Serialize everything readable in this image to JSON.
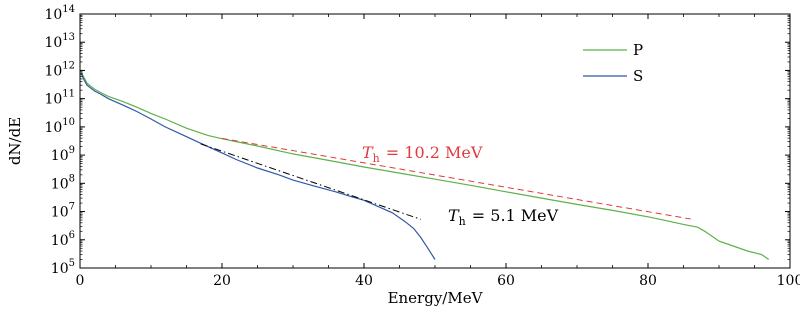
{
  "chart_data": {
    "type": "line",
    "title": "",
    "xlabel": "Energy/MeV",
    "ylabel": "dN/dE",
    "xlim": [
      0,
      100
    ],
    "ylim": [
      100000,
      100000000000000
    ],
    "y_scale": "log",
    "grid": false,
    "legend_position": "top-right",
    "x_ticks": [
      0,
      20,
      40,
      60,
      80,
      100
    ],
    "x_tick_labels": [
      "0",
      "20",
      "40",
      "60",
      "80",
      "100"
    ],
    "y_ticks": [
      100000,
      1000000,
      10000000,
      100000000,
      1000000000,
      10000000000,
      100000000000,
      1000000000000,
      10000000000000,
      100000000000000
    ],
    "y_tick_labels": [
      {
        "base": "10",
        "exp": "5"
      },
      {
        "base": "10",
        "exp": "6"
      },
      {
        "base": "10",
        "exp": "7"
      },
      {
        "base": "10",
        "exp": "8"
      },
      {
        "base": "10",
        "exp": "9"
      },
      {
        "base": "10",
        "exp": "10"
      },
      {
        "base": "10",
        "exp": "11"
      },
      {
        "base": "10",
        "exp": "12"
      },
      {
        "base": "10",
        "exp": "13"
      },
      {
        "base": "10",
        "exp": "14"
      }
    ],
    "series": [
      {
        "name": "P",
        "color": "#5fb14a",
        "x": [
          0.2,
          0.5,
          1,
          2,
          3,
          4,
          6,
          8,
          10,
          12,
          15,
          18,
          20,
          22,
          25,
          30,
          35,
          40,
          45,
          50,
          55,
          60,
          65,
          70,
          75,
          80,
          83,
          85,
          87,
          88,
          90,
          92,
          94,
          96,
          97
        ],
        "y": [
          900000000000,
          600000000000,
          350000000000,
          220000000000,
          160000000000,
          120000000000,
          80000000000,
          50000000000,
          30000000000,
          19000000000,
          9000000000,
          5000000000,
          3800000000,
          3000000000,
          2100000000,
          1100000000,
          650000000,
          380000000,
          230000000,
          140000000,
          85000000,
          50000000,
          30000000,
          18000000,
          11000000,
          6500000,
          4500000,
          3500000,
          2800000,
          2000000,
          900000,
          600000,
          400000,
          300000,
          200000
        ]
      },
      {
        "name": "S",
        "color": "#2f5aa8",
        "x": [
          0.2,
          0.5,
          1,
          2,
          3,
          4,
          6,
          8,
          10,
          12,
          15,
          18,
          20,
          22,
          25,
          28,
          30,
          33,
          36,
          38,
          40,
          42,
          44,
          45,
          46,
          47,
          48,
          49,
          50
        ],
        "y": [
          800000000000,
          500000000000,
          300000000000,
          190000000000,
          140000000000,
          100000000000,
          60000000000,
          35000000000,
          19000000000,
          10000000000,
          4500000000,
          2000000000,
          1200000000,
          700000000,
          350000000,
          200000000,
          130000000,
          80000000,
          50000000,
          35000000,
          25000000,
          15000000,
          9000000,
          6000000,
          4000000,
          2500000,
          1200000,
          500000,
          200000
        ]
      }
    ],
    "fits": [
      {
        "label_var": "T",
        "label_sub": "h",
        "label_value": "= 10.2 MeV",
        "color": "#e0393e",
        "style": "dashed",
        "x": [
          20,
          86
        ],
        "y": [
          3900000000,
          5450000
        ]
      },
      {
        "label_var": "T",
        "label_sub": "h",
        "label_value": "= 5.1 MeV",
        "color": "#000000",
        "style": "dashdot",
        "x": [
          17,
          48
        ],
        "y": [
          2500000000,
          5300000
        ]
      }
    ]
  }
}
